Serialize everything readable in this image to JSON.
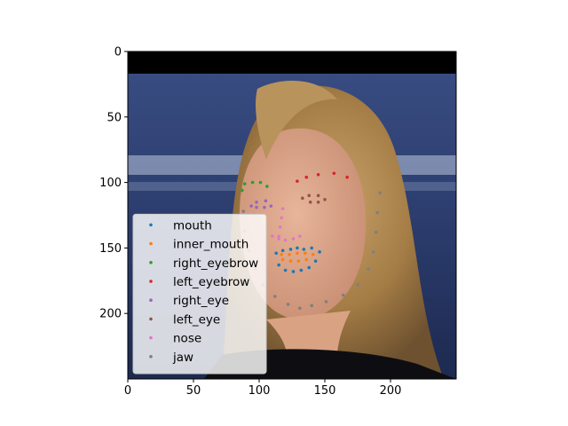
{
  "chart_data": {
    "type": "scatter",
    "background": "image",
    "image_content": "photo of a woman's face with blonde hair, padded with black at top",
    "xlim": [
      0,
      250
    ],
    "ylim": [
      250,
      0
    ],
    "y_inverted": true,
    "xticks": [
      0,
      50,
      100,
      150,
      200
    ],
    "yticks": [
      0,
      50,
      100,
      150,
      200
    ],
    "grid": false,
    "legend_position": "lower-left",
    "series": [
      {
        "name": "mouth",
        "color": "#1f77b4",
        "points": [
          [
            113,
            154
          ],
          [
            118,
            152
          ],
          [
            124,
            151
          ],
          [
            129,
            150
          ],
          [
            134,
            151
          ],
          [
            140,
            150
          ],
          [
            146,
            153
          ],
          [
            143,
            160
          ],
          [
            138,
            165
          ],
          [
            132,
            167
          ],
          [
            126,
            168
          ],
          [
            120,
            167
          ],
          [
            115,
            163
          ]
        ]
      },
      {
        "name": "inner_mouth",
        "color": "#ff7f0e",
        "points": [
          [
            117,
            155
          ],
          [
            123,
            155
          ],
          [
            129,
            154
          ],
          [
            135,
            154
          ],
          [
            141,
            155
          ],
          [
            136,
            159
          ],
          [
            130,
            160
          ],
          [
            124,
            160
          ],
          [
            118,
            159
          ]
        ]
      },
      {
        "name": "right_eyebrow",
        "color": "#2ca02c",
        "points": [
          [
            87,
            106
          ],
          [
            89,
            101
          ],
          [
            95,
            100
          ],
          [
            101,
            100
          ],
          [
            106,
            103
          ]
        ]
      },
      {
        "name": "left_eyebrow",
        "color": "#d62728",
        "points": [
          [
            129,
            99
          ],
          [
            136,
            96
          ],
          [
            145,
            94
          ],
          [
            157,
            93
          ],
          [
            167,
            96
          ]
        ]
      },
      {
        "name": "right_eye",
        "color": "#9467bd",
        "points": [
          [
            94,
            118
          ],
          [
            98,
            115
          ],
          [
            105,
            114
          ],
          [
            109,
            118
          ],
          [
            104,
            119
          ],
          [
            98,
            119
          ]
        ]
      },
      {
        "name": "left_eye",
        "color": "#8c564b",
        "points": [
          [
            133,
            112
          ],
          [
            138,
            110
          ],
          [
            145,
            110
          ],
          [
            150,
            113
          ],
          [
            145,
            115
          ],
          [
            139,
            115
          ]
        ]
      },
      {
        "name": "nose",
        "color": "#e377c2",
        "points": [
          [
            118,
            120
          ],
          [
            117,
            127
          ],
          [
            116,
            134
          ],
          [
            115,
            141
          ],
          [
            110,
            141
          ],
          [
            115,
            143
          ],
          [
            120,
            144
          ],
          [
            126,
            143
          ],
          [
            131,
            141
          ]
        ]
      },
      {
        "name": "jaw",
        "color": "#7f7f7f",
        "points": [
          [
            88,
            122
          ],
          [
            89,
            137
          ],
          [
            92,
            152
          ],
          [
            97,
            166
          ],
          [
            103,
            178
          ],
          [
            112,
            187
          ],
          [
            122,
            193
          ],
          [
            131,
            196
          ],
          [
            140,
            194
          ],
          [
            151,
            191
          ],
          [
            164,
            186
          ],
          [
            175,
            178
          ],
          [
            183,
            166
          ],
          [
            187,
            153
          ],
          [
            189,
            138
          ],
          [
            190,
            123
          ],
          [
            192,
            108
          ]
        ]
      }
    ]
  }
}
